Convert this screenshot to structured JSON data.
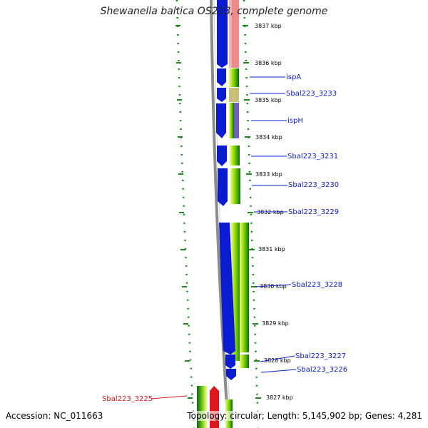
{
  "title": "Shewanella baltica OS223, complete genome",
  "footer": {
    "accession": "Accession: NC_011663",
    "topology": "Topology: circular; Length: 5,145,902 bp; Genes: 4,281"
  },
  "ruler": [
    "3837 kbp",
    "3836 kbp",
    "3835 kbp",
    "3834 kbp",
    "3833 kbp",
    "3832 kbp",
    "3831 kbp",
    "3830 kbp",
    "3829 kbp",
    "3828 kbp",
    "3827 kbp"
  ],
  "genes": [
    {
      "name": "ispA",
      "color": "#0a1bd1",
      "strand": "forward"
    },
    {
      "name": "Sbal223_3233",
      "color": "#0a1bd1",
      "strand": "forward"
    },
    {
      "name": "ispH",
      "color": "#0a1bd1",
      "strand": "forward"
    },
    {
      "name": "Sbal223_3231",
      "color": "#0a1bd1",
      "strand": "forward"
    },
    {
      "name": "Sbal223_3230",
      "color": "#0a1bd1",
      "strand": "forward"
    },
    {
      "name": "Sbal223_3229",
      "color": "#0a1bd1",
      "strand": "forward"
    },
    {
      "name": "Sbal223_3228",
      "color": "#0a1bd1",
      "strand": "forward"
    },
    {
      "name": "Sbal223_3227",
      "color": "#0a1bd1",
      "strand": "forward"
    },
    {
      "name": "Sbal223_3226",
      "color": "#0a1bd1",
      "strand": "forward"
    },
    {
      "name": "Sbal223_3225",
      "color": "#e0161c",
      "strand": "reverse"
    }
  ],
  "colors": {
    "forward_cds": "#0a1bd1",
    "reverse_cds": "#e0161c",
    "backbone": "#888888",
    "tick_green": "#1c8a1c",
    "pink_feature": "#ef8a8a",
    "olive_feature": "#c8c078",
    "gradient_green": "#8fd400"
  }
}
